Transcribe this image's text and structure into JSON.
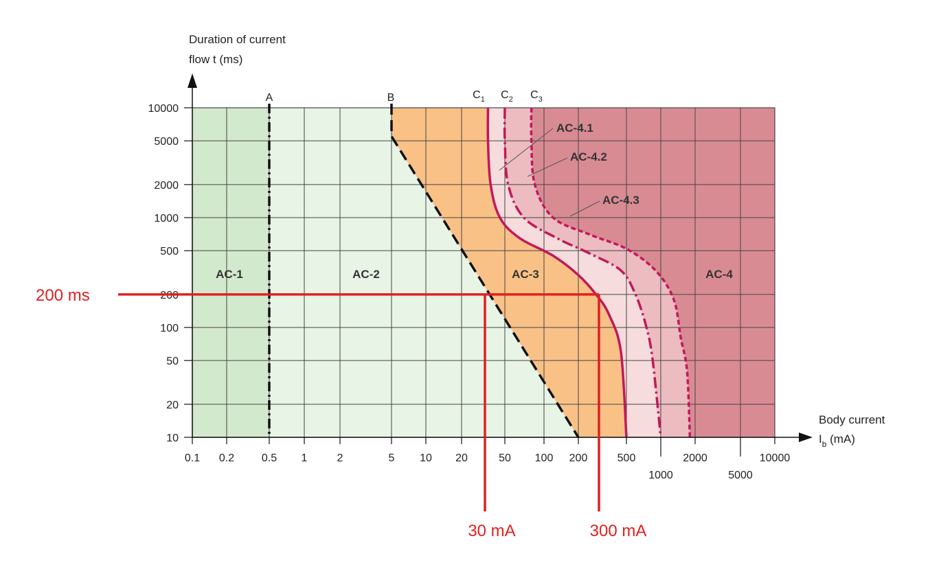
{
  "chart_data": {
    "type": "line",
    "log_x": true,
    "log_y": true,
    "xlabel": [
      "Body current",
      "I",
      "b",
      " (mA)"
    ],
    "ylabel": [
      "Duration of current",
      "flow t (ms)"
    ],
    "xlim": [
      0.1,
      10000
    ],
    "ylim": [
      10,
      10000
    ],
    "x_ticks_row1": [
      "0.1",
      "0.2",
      "0.5",
      "1",
      "2",
      "5",
      "10",
      "20",
      "50",
      "100",
      "200",
      "500",
      "2000",
      "10000"
    ],
    "x_ticks_row2": [
      "1000",
      "5000"
    ],
    "y_ticks": [
      "10000",
      "5000",
      "2000",
      "1000",
      "500",
      "200",
      "100",
      "50",
      "20",
      "10"
    ],
    "zones": [
      "AC-1",
      "AC-2",
      "AC-3",
      "AC-4"
    ],
    "subzones": [
      "AC-4.1",
      "AC-4.2",
      "AC-4.3"
    ],
    "curves": [
      {
        "name": "A",
        "points": [
          [
            0.5,
            10000
          ],
          [
            0.5,
            10
          ]
        ]
      },
      {
        "name": "B",
        "points": [
          [
            5,
            10000
          ],
          [
            5,
            5500
          ],
          [
            200,
            10
          ]
        ]
      },
      {
        "name": "C",
        "sub": "1",
        "points": [
          [
            35,
            10000
          ],
          [
            35,
            5000
          ],
          [
            37,
            2000
          ],
          [
            45,
            1000
          ],
          [
            65,
            650
          ],
          [
            120,
            450
          ],
          [
            200,
            300
          ],
          [
            280,
            200
          ],
          [
            360,
            130
          ],
          [
            450,
            60
          ],
          [
            500,
            10
          ]
        ]
      },
      {
        "name": "C",
        "sub": "2",
        "points": [
          [
            50,
            10000
          ],
          [
            50,
            5000
          ],
          [
            53,
            2000
          ],
          [
            70,
            1000
          ],
          [
            130,
            650
          ],
          [
            250,
            470
          ],
          [
            450,
            330
          ],
          [
            600,
            200
          ],
          [
            750,
            100
          ],
          [
            850,
            50
          ],
          [
            1000,
            10
          ]
        ]
      },
      {
        "name": "C",
        "sub": "3",
        "points": [
          [
            80,
            10000
          ],
          [
            80,
            5000
          ],
          [
            85,
            2000
          ],
          [
            120,
            1000
          ],
          [
            250,
            700
          ],
          [
            500,
            520
          ],
          [
            900,
            330
          ],
          [
            1300,
            180
          ],
          [
            1500,
            80
          ],
          [
            1700,
            40
          ],
          [
            1800,
            10
          ]
        ]
      }
    ],
    "annotations": {
      "hline_label": "200 ms",
      "vline1_label": "30 mA",
      "vline2_label": "300 mA",
      "hline_y": 200,
      "vline1_x": 30,
      "vline2_x": 300
    },
    "colors": {
      "ac1": "#d3e9cd",
      "ac2": "#e8f4e5",
      "ac3": "#f9c186",
      "ac41": "#f6dcdc",
      "ac42": "#ecbcc0",
      "ac4": "#d98b94",
      "curve": "#c2185b",
      "annotation": "#e02020"
    }
  }
}
